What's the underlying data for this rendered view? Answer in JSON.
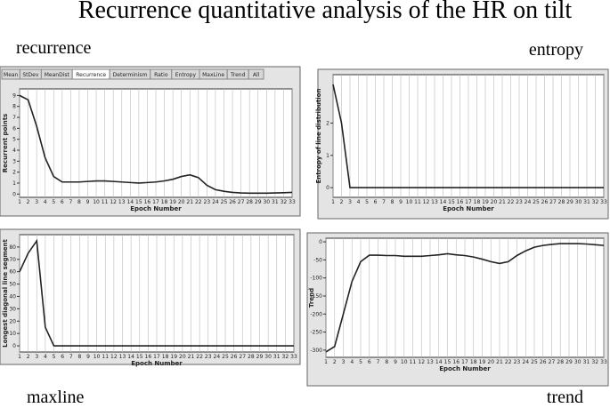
{
  "title": "Recurrence quantitative analysis of the HR on tilt",
  "tabs": [
    "Mean",
    "StDev",
    "MeanDist",
    "Recurrence",
    "Determinism",
    "Ratio",
    "Entropy",
    "MaxLine",
    "Trend",
    "All"
  ],
  "chart_data": [
    {
      "type": "line",
      "title": "recurrence",
      "xlabel": "Epoch Number",
      "ylabel": "Recurrent points",
      "x": [
        1,
        2,
        3,
        4,
        5,
        6,
        7,
        8,
        9,
        10,
        11,
        12,
        13,
        14,
        15,
        16,
        17,
        18,
        19,
        20,
        21,
        22,
        23,
        24,
        25,
        26,
        27,
        28,
        29,
        30,
        31,
        32,
        33
      ],
      "xlim": [
        1,
        33
      ],
      "xticks": [
        1,
        2,
        3,
        4,
        5,
        6,
        7,
        8,
        9,
        10,
        11,
        12,
        13,
        14,
        15,
        16,
        17,
        18,
        19,
        20,
        21,
        22,
        23,
        24,
        25,
        26,
        27,
        28,
        29,
        30,
        31,
        32,
        33
      ],
      "ylim": [
        -0.3,
        9.6
      ],
      "yticks": [
        0,
        1,
        2,
        3,
        4,
        5,
        6,
        7,
        8,
        9
      ],
      "grid": true,
      "color": "#222222",
      "values": [
        9,
        8.6,
        6.2,
        3.3,
        1.6,
        1.1,
        1.1,
        1.1,
        1.15,
        1.2,
        1.2,
        1.15,
        1.1,
        1.05,
        1.0,
        1.05,
        1.1,
        1.2,
        1.35,
        1.6,
        1.75,
        1.5,
        0.8,
        0.4,
        0.25,
        0.15,
        0.1,
        0.08,
        0.08,
        0.08,
        0.1,
        0.12,
        0.15
      ]
    },
    {
      "type": "line",
      "title": "entropy",
      "xlabel": "Epoch Number",
      "ylabel": "Entropy of line distribution",
      "x": [
        1,
        2,
        3,
        4,
        5,
        6,
        7,
        8,
        9,
        10,
        11,
        12,
        13,
        14,
        15,
        16,
        17,
        18,
        19,
        20,
        21,
        22,
        23,
        24,
        25,
        26,
        27,
        28,
        29,
        30,
        31,
        32,
        33
      ],
      "xlim": [
        1,
        33
      ],
      "xticks": [
        1,
        2,
        3,
        4,
        5,
        6,
        7,
        8,
        9,
        10,
        11,
        12,
        13,
        14,
        15,
        16,
        17,
        18,
        19,
        20,
        21,
        22,
        23,
        24,
        25,
        26,
        27,
        28,
        29,
        30,
        31,
        32,
        33
      ],
      "ylim": [
        -0.3,
        3.5
      ],
      "yticks": [
        0,
        1,
        2
      ],
      "grid": true,
      "color": "#222222",
      "values": [
        3.2,
        2,
        0,
        0,
        0,
        0,
        0,
        0,
        0,
        0,
        0,
        0,
        0,
        0,
        0,
        0,
        0,
        0,
        0,
        0,
        0,
        0,
        0,
        0,
        0,
        0,
        0,
        0,
        0,
        0,
        0,
        0,
        0
      ]
    },
    {
      "type": "line",
      "title": "maxline",
      "xlabel": "Epoch Number",
      "ylabel": "Longest diagonal line segment",
      "x": [
        1,
        2,
        3,
        4,
        5,
        6,
        7,
        8,
        9,
        10,
        11,
        12,
        13,
        14,
        15,
        16,
        17,
        18,
        19,
        20,
        21,
        22,
        23,
        24,
        25,
        26,
        27,
        28,
        29,
        30,
        31,
        32,
        33
      ],
      "xlim": [
        1,
        33
      ],
      "xticks": [
        1,
        2,
        3,
        4,
        5,
        6,
        7,
        8,
        9,
        10,
        11,
        12,
        13,
        14,
        15,
        16,
        17,
        18,
        19,
        20,
        21,
        22,
        23,
        24,
        25,
        26,
        27,
        28,
        29,
        30,
        31,
        32,
        33
      ],
      "ylim": [
        -5,
        90
      ],
      "yticks": [
        0,
        10,
        20,
        30,
        40,
        50,
        60,
        70,
        80
      ],
      "grid": true,
      "color": "#222222",
      "values": [
        60,
        75,
        85,
        15,
        0,
        0,
        0,
        0,
        0,
        0,
        0,
        0,
        0,
        0,
        0,
        0,
        0,
        0,
        0,
        0,
        0,
        0,
        0,
        0,
        0,
        0,
        0,
        0,
        0,
        0,
        0,
        0,
        0
      ]
    },
    {
      "type": "line",
      "title": "trend",
      "xlabel": "Epoch Number",
      "ylabel": "Trend",
      "x": [
        1,
        2,
        3,
        4,
        5,
        6,
        7,
        8,
        9,
        10,
        11,
        12,
        13,
        14,
        15,
        16,
        17,
        18,
        19,
        20,
        21,
        22,
        23,
        24,
        25,
        26,
        27,
        28,
        29,
        30,
        31,
        32,
        33
      ],
      "xlim": [
        1,
        33
      ],
      "xticks": [
        1,
        2,
        3,
        4,
        5,
        6,
        7,
        8,
        9,
        10,
        11,
        12,
        13,
        14,
        15,
        16,
        17,
        18,
        19,
        20,
        21,
        22,
        23,
        24,
        25,
        26,
        27,
        28,
        29,
        30,
        31,
        32,
        33
      ],
      "ylim": [
        -320,
        10
      ],
      "yticks": [
        0,
        -50,
        -100,
        -150,
        -200,
        -250,
        -300
      ],
      "grid": true,
      "color": "#222222",
      "values": [
        -305,
        -290,
        -200,
        -110,
        -55,
        -37,
        -37,
        -38,
        -38,
        -40,
        -40,
        -40,
        -38,
        -36,
        -33,
        -36,
        -38,
        -42,
        -48,
        -55,
        -60,
        -55,
        -38,
        -25,
        -15,
        -10,
        -7,
        -5,
        -5,
        -5,
        -6,
        -8,
        -10
      ]
    }
  ]
}
